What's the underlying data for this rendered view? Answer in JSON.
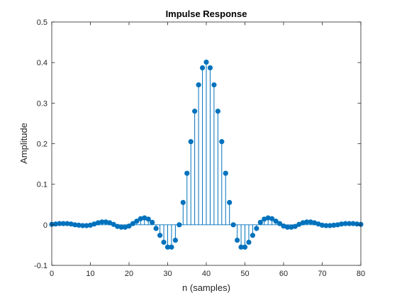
{
  "chart_data": {
    "type": "stem",
    "title": "Impulse Response",
    "xlabel": "n (samples)",
    "ylabel": "Amplitude",
    "xlim": [
      0,
      80
    ],
    "ylim": [
      -0.1,
      0.5
    ],
    "xticks": [
      "0",
      "10",
      "20",
      "30",
      "40",
      "50",
      "60",
      "70",
      "80"
    ],
    "yticks": [
      "-0.1",
      "0",
      "0.1",
      "0.2",
      "0.3",
      "0.4",
      "0.5"
    ],
    "grid": false,
    "series": [
      {
        "color": "#0072BD",
        "x": [
          0,
          1,
          2,
          3,
          4,
          5,
          6,
          7,
          8,
          9,
          10,
          11,
          12,
          13,
          14,
          15,
          16,
          17,
          18,
          19,
          20,
          21,
          22,
          23,
          24,
          25,
          26,
          27,
          28,
          29,
          30,
          31,
          32,
          33,
          34,
          35,
          36,
          37,
          38,
          39,
          40,
          41,
          42,
          43,
          44,
          45,
          46,
          47,
          48,
          49,
          50,
          51,
          52,
          53,
          54,
          55,
          56,
          57,
          58,
          59,
          60,
          61,
          62,
          63,
          64,
          65,
          66,
          67,
          68,
          69,
          70,
          71,
          72,
          73,
          74,
          75,
          76,
          77,
          78,
          79,
          80
        ],
        "values": [
          0.001,
          0.002,
          0.003,
          0.003,
          0.003,
          0.002,
          0.0,
          -0.001,
          -0.002,
          -0.002,
          -0.001,
          0.002,
          0.005,
          0.007,
          0.007,
          0.005,
          0.001,
          -0.004,
          -0.006,
          -0.006,
          -0.003,
          0.003,
          0.009,
          0.015,
          0.017,
          0.014,
          0.006,
          -0.009,
          -0.026,
          -0.043,
          -0.055,
          -0.055,
          -0.038,
          0.0,
          0.055,
          0.127,
          0.205,
          0.28,
          0.345,
          0.387,
          0.401,
          0.387,
          0.345,
          0.28,
          0.205,
          0.127,
          0.055,
          0.0,
          -0.038,
          -0.055,
          -0.055,
          -0.043,
          -0.026,
          -0.009,
          0.006,
          0.014,
          0.017,
          0.015,
          0.009,
          0.003,
          -0.003,
          -0.006,
          -0.006,
          -0.004,
          0.001,
          0.005,
          0.007,
          0.007,
          0.005,
          0.002,
          -0.001,
          -0.002,
          -0.002,
          -0.001,
          0.0,
          0.002,
          0.003,
          0.003,
          0.003,
          0.002,
          0.001
        ]
      }
    ]
  }
}
